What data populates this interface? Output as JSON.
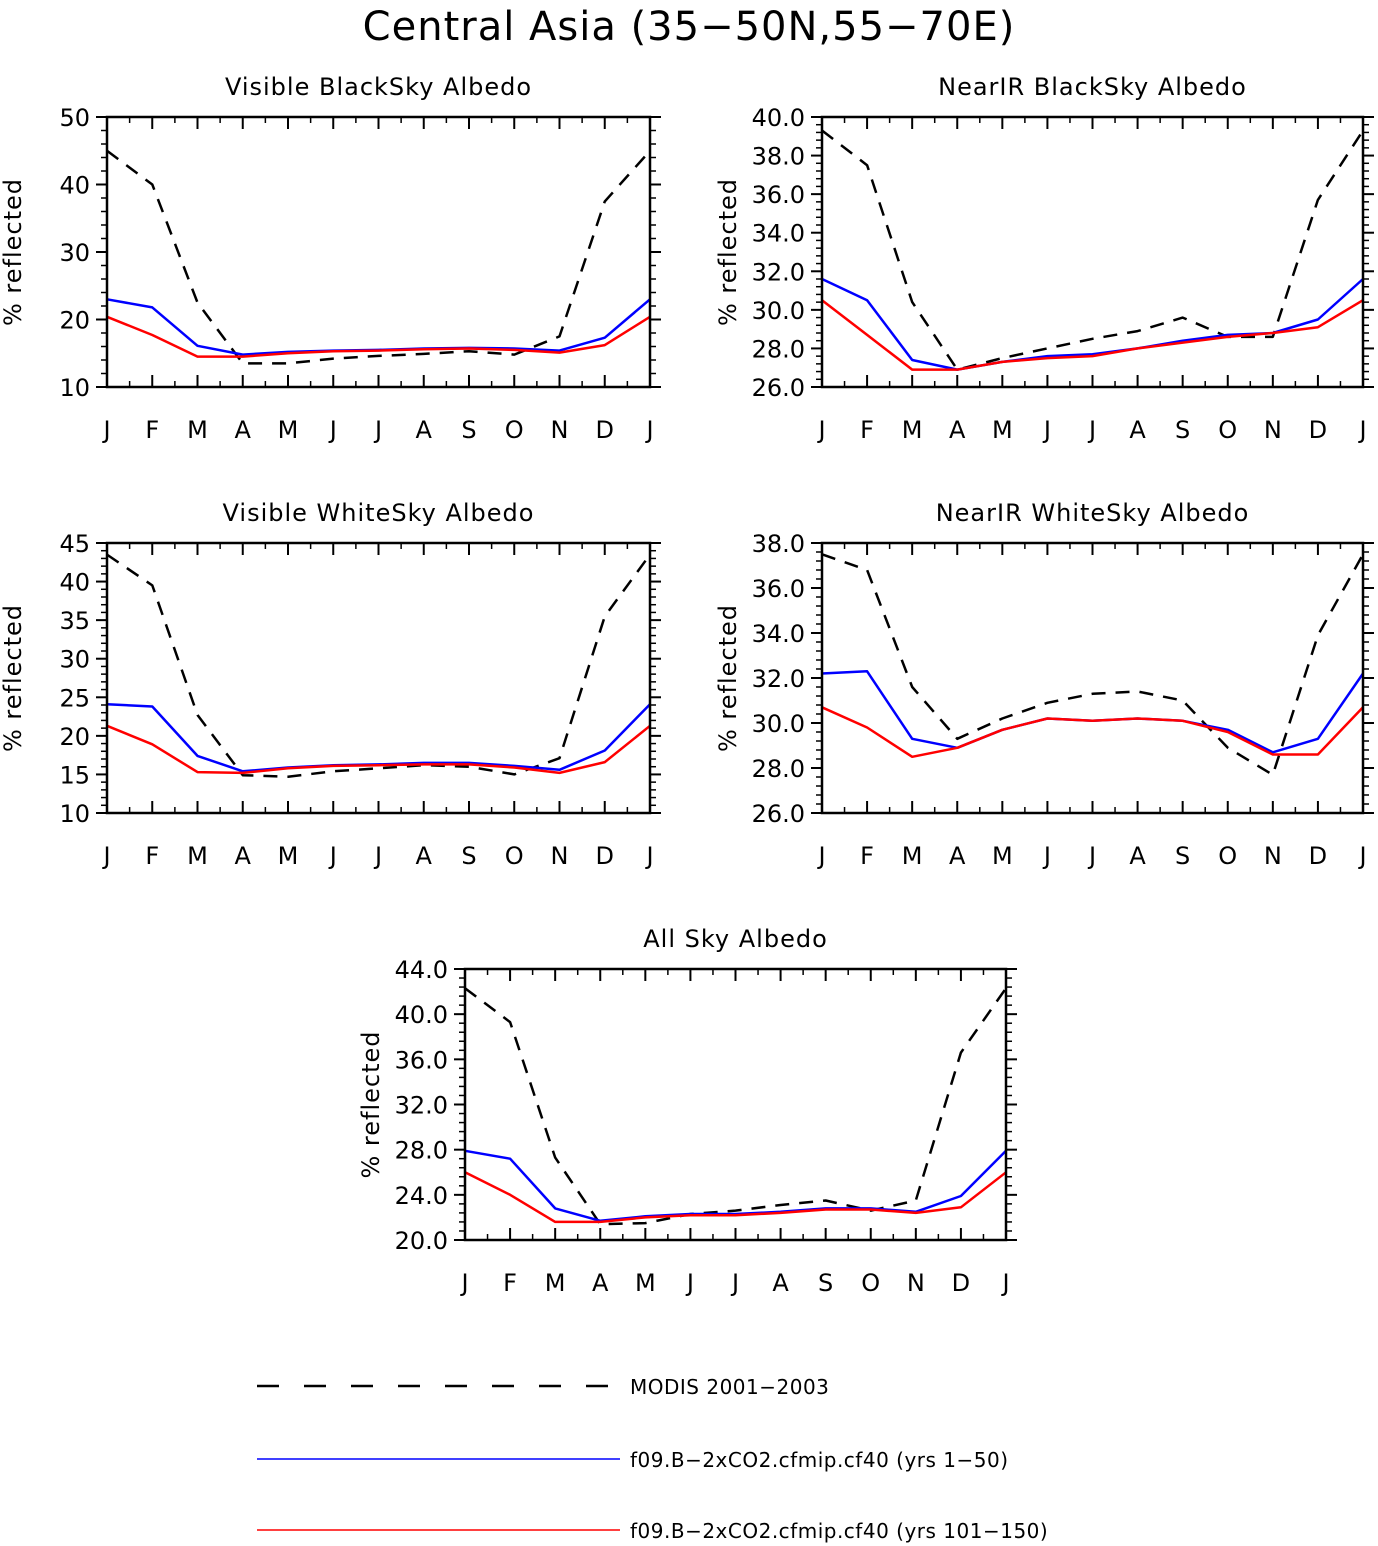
{
  "title": "Central Asia (35−50N,55−70E)",
  "months": [
    "J",
    "F",
    "M",
    "A",
    "M",
    "J",
    "J",
    "A",
    "S",
    "O",
    "N",
    "D",
    "J"
  ],
  "legend": [
    {
      "label": "MODIS 2001−2003",
      "color": "#000000",
      "dash": true
    },
    {
      "label": "f09.B−2xCO2.cfmip.cf40 (yrs 1−50)",
      "color": "#0000ff",
      "dash": false
    },
    {
      "label": "f09.B−2xCO2.cfmip.cf40 (yrs 101−150)",
      "color": "#ff0000",
      "dash": false
    }
  ],
  "chart_data": [
    {
      "type": "line",
      "title": "Visible BlackSky Albedo",
      "ylabel": "% reflected",
      "ylim": [
        10,
        50
      ],
      "yticks": [
        "10",
        "20",
        "30",
        "40",
        "50"
      ],
      "series": [
        {
          "name": "MODIS 2001−2003",
          "values": [
            45.0,
            40.0,
            22.5,
            13.5,
            13.5,
            14.2,
            14.6,
            14.9,
            15.3,
            14.8,
            17.5,
            37.5,
            45.0
          ]
        },
        {
          "name": "f09.B−2xCO2.cfmip.cf40 (yrs 1−50)",
          "values": [
            23.0,
            21.8,
            16.1,
            14.8,
            15.2,
            15.4,
            15.5,
            15.7,
            15.8,
            15.7,
            15.4,
            17.3,
            23.0
          ]
        },
        {
          "name": "f09.B−2xCO2.cfmip.cf40 (yrs 101−150)",
          "values": [
            20.4,
            17.7,
            14.5,
            14.5,
            15.0,
            15.3,
            15.4,
            15.6,
            15.7,
            15.5,
            15.1,
            16.2,
            20.4
          ]
        }
      ]
    },
    {
      "type": "line",
      "title": "NearIR BlackSky Albedo",
      "ylabel": "% reflected",
      "ylim": [
        26,
        40
      ],
      "yticks": [
        "26.0",
        "28.0",
        "30.0",
        "32.0",
        "34.0",
        "36.0",
        "38.0",
        "40.0"
      ],
      "series": [
        {
          "name": "MODIS 2001−2003",
          "values": [
            39.3,
            37.5,
            30.4,
            26.9,
            27.5,
            28.0,
            28.5,
            28.9,
            29.6,
            28.6,
            28.6,
            35.7,
            39.3
          ]
        },
        {
          "name": "f09.B−2xCO2.cfmip.cf40 (yrs 1−50)",
          "values": [
            31.6,
            30.5,
            27.4,
            26.9,
            27.3,
            27.6,
            27.7,
            28.0,
            28.4,
            28.7,
            28.8,
            29.5,
            31.6
          ]
        },
        {
          "name": "f09.B−2xCO2.cfmip.cf40 (yrs 101−150)",
          "values": [
            30.5,
            28.7,
            26.9,
            26.9,
            27.3,
            27.5,
            27.6,
            28.0,
            28.3,
            28.6,
            28.8,
            29.1,
            30.5
          ]
        }
      ]
    },
    {
      "type": "line",
      "title": "Visible WhiteSky Albedo",
      "ylabel": "% reflected",
      "ylim": [
        10,
        45
      ],
      "yticks": [
        "10",
        "15",
        "20",
        "25",
        "30",
        "35",
        "40",
        "45"
      ],
      "series": [
        {
          "name": "MODIS 2001−2003",
          "values": [
            43.5,
            39.5,
            22.7,
            14.9,
            14.7,
            15.4,
            15.8,
            16.2,
            16.0,
            15.0,
            17.1,
            35.5,
            43.5
          ]
        },
        {
          "name": "f09.B−2xCO2.cfmip.cf40 (yrs 1−50)",
          "values": [
            24.1,
            23.8,
            17.4,
            15.4,
            15.9,
            16.2,
            16.3,
            16.5,
            16.5,
            16.1,
            15.6,
            18.1,
            24.1
          ]
        },
        {
          "name": "f09.B−2xCO2.cfmip.cf40 (yrs 101−150)",
          "values": [
            21.3,
            18.9,
            15.3,
            15.2,
            15.8,
            16.1,
            16.2,
            16.3,
            16.3,
            15.9,
            15.2,
            16.6,
            21.3
          ]
        }
      ]
    },
    {
      "type": "line",
      "title": "NearIR WhiteSky Albedo",
      "ylabel": "% reflected",
      "ylim": [
        26,
        38
      ],
      "yticks": [
        "26.0",
        "28.0",
        "30.0",
        "32.0",
        "34.0",
        "36.0",
        "38.0"
      ],
      "series": [
        {
          "name": "MODIS 2001−2003",
          "values": [
            37.5,
            36.8,
            31.6,
            29.3,
            30.2,
            30.9,
            31.3,
            31.4,
            31.0,
            28.9,
            27.7,
            33.9,
            37.5
          ]
        },
        {
          "name": "f09.B−2xCO2.cfmip.cf40 (yrs 1−50)",
          "values": [
            32.2,
            32.3,
            29.3,
            28.9,
            29.7,
            30.2,
            30.1,
            30.2,
            30.1,
            29.7,
            28.7,
            29.3,
            32.2
          ]
        },
        {
          "name": "f09.B−2xCO2.cfmip.cf40 (yrs 101−150)",
          "values": [
            30.7,
            29.8,
            28.5,
            28.9,
            29.7,
            30.2,
            30.1,
            30.2,
            30.1,
            29.6,
            28.6,
            28.6,
            30.7
          ]
        }
      ]
    },
    {
      "type": "line",
      "title": "All Sky Albedo",
      "ylabel": "% reflected",
      "ylim": [
        20,
        44
      ],
      "yticks": [
        "20.0",
        "24.0",
        "28.0",
        "32.0",
        "36.0",
        "40.0",
        "44.0"
      ],
      "series": [
        {
          "name": "MODIS 2001−2003",
          "values": [
            42.3,
            39.3,
            27.3,
            21.4,
            21.5,
            22.3,
            22.6,
            23.1,
            23.5,
            22.6,
            23.5,
            36.6,
            42.3
          ]
        },
        {
          "name": "f09.B−2xCO2.cfmip.cf40 (yrs 1−50)",
          "values": [
            27.9,
            27.2,
            22.8,
            21.7,
            22.1,
            22.3,
            22.3,
            22.5,
            22.8,
            22.8,
            22.5,
            23.9,
            27.9
          ]
        },
        {
          "name": "f09.B−2xCO2.cfmip.cf40 (yrs 101−150)",
          "values": [
            26.0,
            24.0,
            21.6,
            21.6,
            22.0,
            22.2,
            22.2,
            22.4,
            22.7,
            22.7,
            22.4,
            22.9,
            26.0
          ]
        }
      ]
    }
  ]
}
